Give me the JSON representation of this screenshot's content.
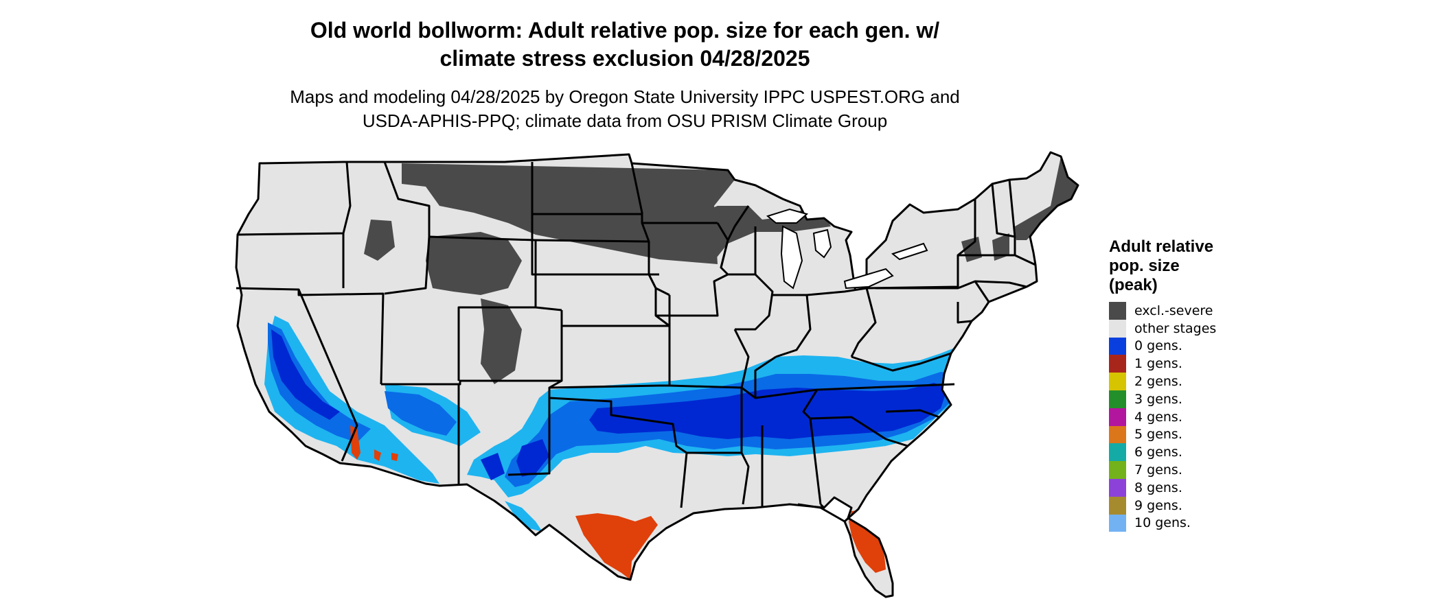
{
  "map": {
    "title": "Old world bollworm: Adult relative pop. size for each gen. w/\nclimate stress exclusion 04/28/2025",
    "subtitle": "Maps and modeling 04/28/2025 by Oregon State University IPPC USPEST.ORG and\nUSDA-APHIS-PPQ; climate data from OSU PRISM Climate Group",
    "colors": {
      "land": "#e4e4e4",
      "border": "#000000",
      "excluded": "#4a4a4a",
      "gen0_light": "#1eb4f0",
      "gen0_mid": "#0a6be6",
      "gen0_dark": "#0028d2",
      "gen1": "#e0400a",
      "gen2": "#e6d200"
    }
  },
  "legend": {
    "title": "Adult relative\npop. size\n(peak)",
    "items": [
      {
        "label": "excl.-severe",
        "color": "#4a4a4a"
      },
      {
        "label": "other stages",
        "color": "#e4e4e4"
      },
      {
        "label": "0 gens.",
        "color": "#0a3fdf"
      },
      {
        "label": "1 gens.",
        "color": "#a8251b"
      },
      {
        "label": "2 gens.",
        "color": "#d7c400"
      },
      {
        "label": "3 gens.",
        "color": "#238f2a"
      },
      {
        "label": "4 gens.",
        "color": "#b2169e"
      },
      {
        "label": "5 gens.",
        "color": "#dc761a"
      },
      {
        "label": "6 gens.",
        "color": "#14aaa6"
      },
      {
        "label": "7 gens.",
        "color": "#73b21a"
      },
      {
        "label": "8 gens.",
        "color": "#8c42d8"
      },
      {
        "label": "9 gens.",
        "color": "#a68a2e"
      },
      {
        "label": "10 gens.",
        "color": "#72b2f2"
      }
    ]
  }
}
